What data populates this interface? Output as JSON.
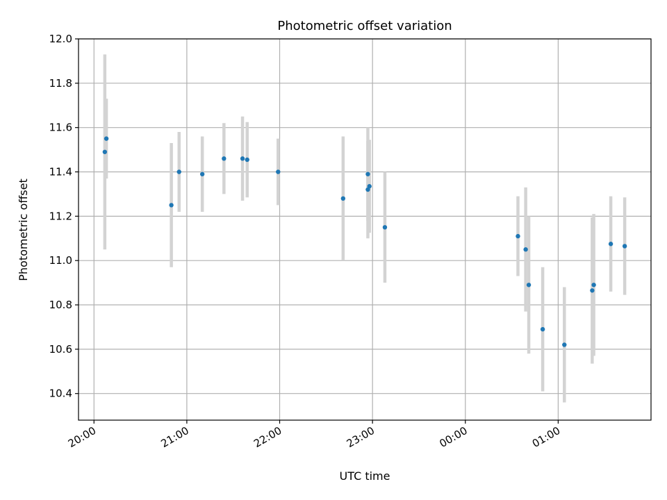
{
  "chart_data": {
    "type": "scatter",
    "title": "Photometric offset variation",
    "xlabel": "UTC time",
    "ylabel": "Photometric offset",
    "x_unit": "time of day, UTC (HH:MM; first tick is 20:00)",
    "xlim": [
      "19:50",
      "02:00"
    ],
    "ylim": [
      10.28,
      12.0
    ],
    "x_ticks": [
      "20:00",
      "21:00",
      "22:00",
      "23:00",
      "00:00",
      "01:00"
    ],
    "y_ticks": [
      "10.4",
      "10.6",
      "10.8",
      "11.0",
      "11.2",
      "11.4",
      "11.6",
      "11.8",
      "12.0"
    ],
    "grid": true,
    "marker_color": "#1f77b4",
    "errorbar_color": "#d3d3d3",
    "points": [
      {
        "x": "20:07",
        "y": 11.49,
        "err": 0.44
      },
      {
        "x": "20:08",
        "y": 11.55,
        "err": 0.18
      },
      {
        "x": "20:50",
        "y": 11.25,
        "err": 0.28
      },
      {
        "x": "20:55",
        "y": 11.4,
        "err": 0.18
      },
      {
        "x": "21:10",
        "y": 11.39,
        "err": 0.17
      },
      {
        "x": "21:24",
        "y": 11.46,
        "err": 0.16
      },
      {
        "x": "21:36",
        "y": 11.46,
        "err": 0.19
      },
      {
        "x": "21:39",
        "y": 11.455,
        "err": 0.17
      },
      {
        "x": "21:59",
        "y": 11.4,
        "err": 0.15
      },
      {
        "x": "22:41",
        "y": 11.28,
        "err": 0.28
      },
      {
        "x": "22:57",
        "y": 11.32,
        "err": 0.22
      },
      {
        "x": "22:57",
        "y": 11.39,
        "err": 0.21
      },
      {
        "x": "22:58",
        "y": 11.335,
        "err": 0.21
      },
      {
        "x": "23:08",
        "y": 11.15,
        "err": 0.25
      },
      {
        "x": "00:34",
        "y": 11.11,
        "err": 0.18
      },
      {
        "x": "00:39",
        "y": 11.05,
        "err": 0.28
      },
      {
        "x": "00:41",
        "y": 10.89,
        "err": 0.31
      },
      {
        "x": "00:50",
        "y": 10.69,
        "err": 0.28
      },
      {
        "x": "01:04",
        "y": 10.62,
        "err": 0.26
      },
      {
        "x": "01:22",
        "y": 10.865,
        "err": 0.33
      },
      {
        "x": "01:23",
        "y": 10.89,
        "err": 0.32
      },
      {
        "x": "01:34",
        "y": 11.075,
        "err": 0.215
      },
      {
        "x": "01:43",
        "y": 11.065,
        "err": 0.22
      }
    ]
  }
}
